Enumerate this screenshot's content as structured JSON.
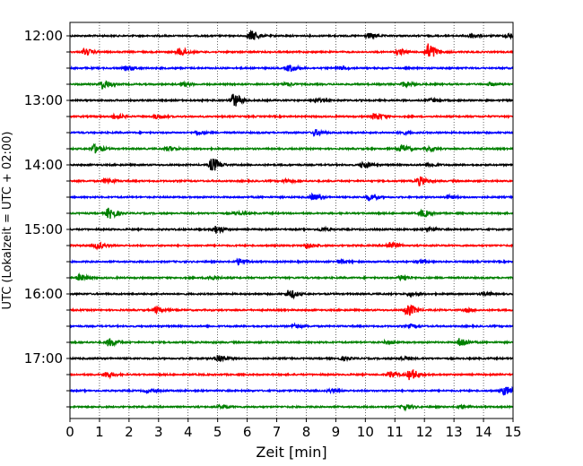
{
  "chart_data": {
    "type": "line",
    "title": "",
    "xlabel": "Zeit  [min]",
    "ylabel": "UTC (Lokalzeit = UTC + 02:00)",
    "xlim": [
      0,
      15
    ],
    "xticks": [
      0,
      1,
      2,
      3,
      4,
      5,
      6,
      7,
      8,
      9,
      10,
      11,
      12,
      13,
      14,
      15
    ],
    "ytick_labels": [
      "12:00",
      "13:00",
      "14:00",
      "15:00",
      "16:00",
      "17:00"
    ],
    "rows": [
      {
        "time": "12:00",
        "color": "#000000",
        "events": [
          [
            6.1,
            10
          ],
          [
            10.1,
            5
          ],
          [
            13.5,
            4
          ],
          [
            14.8,
            5
          ]
        ]
      },
      {
        "time": "12:15",
        "color": "#ff0000",
        "events": [
          [
            0.5,
            6
          ],
          [
            3.7,
            8
          ],
          [
            11.1,
            5
          ],
          [
            12.1,
            18
          ]
        ]
      },
      {
        "time": "12:30",
        "color": "#0000ff",
        "events": [
          [
            1.9,
            4
          ],
          [
            7.4,
            7
          ],
          [
            9.1,
            3
          ]
        ]
      },
      {
        "time": "12:45",
        "color": "#008000",
        "events": [
          [
            1.1,
            9
          ],
          [
            3.8,
            3
          ],
          [
            7.3,
            3
          ],
          [
            11.3,
            5
          ],
          [
            14.2,
            3
          ]
        ]
      },
      {
        "time": "13:00",
        "color": "#000000",
        "events": [
          [
            5.5,
            14
          ],
          [
            8.3,
            3
          ],
          [
            12.2,
            3
          ]
        ]
      },
      {
        "time": "13:15",
        "color": "#ff0000",
        "events": [
          [
            1.5,
            5
          ],
          [
            2.9,
            4
          ],
          [
            10.3,
            7
          ]
        ]
      },
      {
        "time": "13:30",
        "color": "#0000ff",
        "events": [
          [
            4.3,
            3
          ],
          [
            8.3,
            6
          ],
          [
            11.2,
            3
          ]
        ]
      },
      {
        "time": "13:45",
        "color": "#008000",
        "events": [
          [
            0.8,
            9
          ],
          [
            3.3,
            4
          ],
          [
            11.2,
            8
          ],
          [
            12.1,
            4
          ]
        ]
      },
      {
        "time": "14:00",
        "color": "#000000",
        "events": [
          [
            4.8,
            14
          ],
          [
            9.9,
            7
          ],
          [
            12.2,
            3
          ]
        ]
      },
      {
        "time": "14:15",
        "color": "#ff0000",
        "events": [
          [
            1.2,
            5
          ],
          [
            7.3,
            3
          ],
          [
            11.8,
            9
          ]
        ]
      },
      {
        "time": "14:30",
        "color": "#0000ff",
        "events": [
          [
            8.2,
            6
          ],
          [
            10.1,
            6
          ],
          [
            12.8,
            3
          ]
        ]
      },
      {
        "time": "14:45",
        "color": "#008000",
        "events": [
          [
            1.3,
            11
          ],
          [
            5.6,
            3
          ],
          [
            11.9,
            7
          ]
        ]
      },
      {
        "time": "15:00",
        "color": "#000000",
        "events": [
          [
            4.9,
            8
          ],
          [
            8.5,
            3
          ],
          [
            12.1,
            3
          ]
        ]
      },
      {
        "time": "15:15",
        "color": "#ff0000",
        "events": [
          [
            0.9,
            6
          ],
          [
            8.0,
            5
          ],
          [
            10.8,
            7
          ]
        ]
      },
      {
        "time": "15:30",
        "color": "#0000ff",
        "events": [
          [
            5.7,
            6
          ],
          [
            9.1,
            3
          ],
          [
            11.8,
            3
          ]
        ]
      },
      {
        "time": "15:45",
        "color": "#008000",
        "events": [
          [
            0.3,
            6
          ],
          [
            4.7,
            4
          ],
          [
            11.2,
            5
          ]
        ]
      },
      {
        "time": "16:00",
        "color": "#000000",
        "events": [
          [
            7.4,
            9
          ],
          [
            11.5,
            3
          ],
          [
            14.0,
            3
          ]
        ]
      },
      {
        "time": "16:15",
        "color": "#ff0000",
        "events": [
          [
            2.9,
            6
          ],
          [
            11.4,
            13
          ],
          [
            13.4,
            3
          ]
        ]
      },
      {
        "time": "16:30",
        "color": "#0000ff",
        "events": [
          [
            7.6,
            4
          ],
          [
            11.5,
            3
          ]
        ]
      },
      {
        "time": "16:45",
        "color": "#008000",
        "events": [
          [
            1.3,
            8
          ],
          [
            10.7,
            3
          ],
          [
            13.2,
            9
          ]
        ]
      },
      {
        "time": "17:00",
        "color": "#000000",
        "events": [
          [
            5.0,
            8
          ],
          [
            9.2,
            3
          ],
          [
            11.2,
            3
          ]
        ]
      },
      {
        "time": "17:15",
        "color": "#ff0000",
        "events": [
          [
            1.2,
            6
          ],
          [
            10.8,
            6
          ],
          [
            11.5,
            11
          ]
        ]
      },
      {
        "time": "17:30",
        "color": "#0000ff",
        "events": [
          [
            2.6,
            3
          ],
          [
            8.8,
            3
          ],
          [
            14.7,
            9
          ]
        ]
      },
      {
        "time": "17:45",
        "color": "#008000",
        "events": [
          [
            5.1,
            3
          ],
          [
            11.3,
            5
          ],
          [
            13.2,
            3
          ]
        ]
      }
    ]
  }
}
